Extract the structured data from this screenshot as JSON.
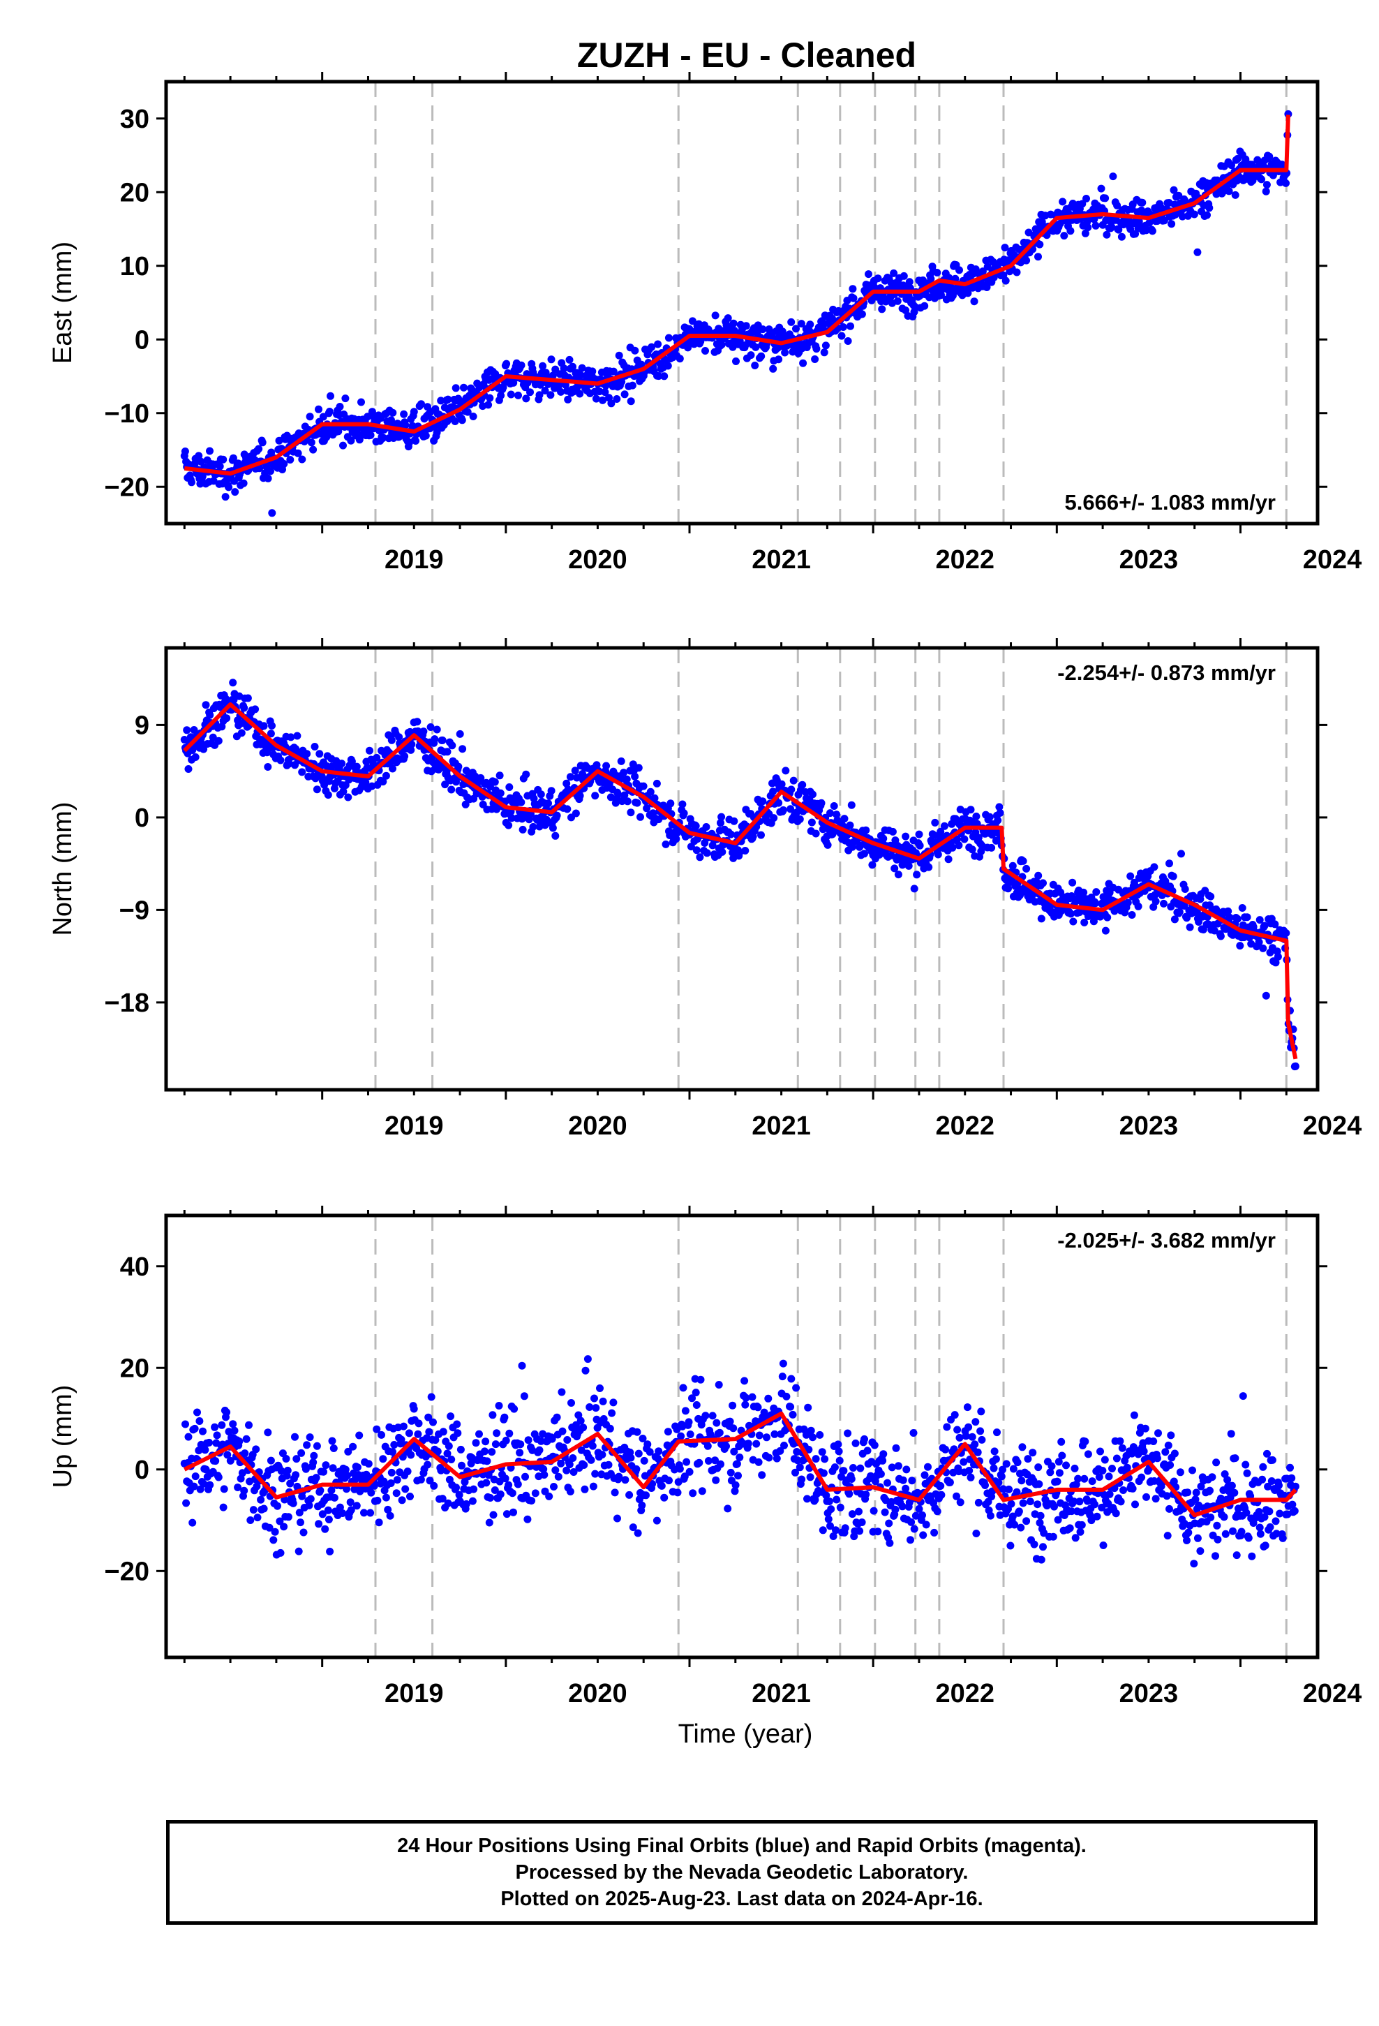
{
  "title": "ZUZH  - EU - Cleaned",
  "x_axis_label": "Time (year)",
  "footer": {
    "line1": "24 Hour Positions Using Final Orbits (blue) and Rapid Orbits (magenta).",
    "line2": "Processed by the Nevada Geodetic Laboratory.",
    "line3": "Plotted on 2025-Aug-23. Last data on 2024-Apr-16."
  },
  "colors": {
    "points": "#0000ff",
    "model": "#ff0000",
    "steps": "#bbbbbb",
    "frame": "#000000"
  },
  "chart_data": [
    {
      "type": "scatter",
      "panel": "east",
      "ylabel": "East (mm)",
      "rate_label": "5.666+/- 1.083 mm/yr",
      "rate_position": "bottom-right",
      "xlim": [
        2018.15,
        2024.42
      ],
      "ylim": [
        -25,
        35
      ],
      "yticks": [
        -20,
        -10,
        0,
        10,
        20,
        30
      ],
      "xticks": [
        2019,
        2020,
        2021,
        2022,
        2023,
        2024
      ],
      "step_epochs": [
        2019.29,
        2019.6,
        2020.94,
        2021.59,
        2021.82,
        2022.01,
        2022.23,
        2022.36,
        2022.71,
        2024.25
      ],
      "model_line": {
        "x": [
          2018.25,
          2018.5,
          2018.75,
          2019.0,
          2019.25,
          2019.5,
          2019.75,
          2020.0,
          2020.25,
          2020.5,
          2020.75,
          2021.0,
          2021.25,
          2021.5,
          2021.75,
          2022.0,
          2022.25,
          2022.36,
          2022.5,
          2022.75,
          2023.0,
          2023.25,
          2023.5,
          2023.75,
          2024.0,
          2024.25,
          2024.26
        ],
        "y": [
          -17.5,
          -18.2,
          -16.0,
          -11.5,
          -11.5,
          -12.5,
          -9.5,
          -5.0,
          -5.5,
          -6.0,
          -4.0,
          0.5,
          0.5,
          -0.5,
          1.0,
          6.5,
          6.5,
          8.0,
          7.5,
          10.0,
          16.5,
          17.0,
          16.5,
          18.5,
          23.0,
          23.0,
          30.5
        ]
      },
      "scatter_points": {
        "n": 1400,
        "color": "blue",
        "spread_mm": 1.8
      }
    },
    {
      "type": "scatter",
      "panel": "north",
      "ylabel": "North (mm)",
      "rate_label": "-2.254+/- 0.873 mm/yr",
      "rate_position": "top-right",
      "xlim": [
        2018.15,
        2024.42
      ],
      "ylim": [
        -26.5,
        16.5
      ],
      "yticks": [
        -18,
        -9,
        0,
        9
      ],
      "xticks": [
        2019,
        2020,
        2021,
        2022,
        2023,
        2024
      ],
      "step_epochs": [
        2019.29,
        2019.6,
        2020.94,
        2021.59,
        2021.82,
        2022.01,
        2022.23,
        2022.36,
        2022.71,
        2024.25
      ],
      "model_line": {
        "x": [
          2018.25,
          2018.5,
          2018.75,
          2019.0,
          2019.25,
          2019.5,
          2019.75,
          2020.0,
          2020.25,
          2020.5,
          2020.75,
          2021.0,
          2021.25,
          2021.5,
          2021.75,
          2022.0,
          2022.25,
          2022.5,
          2022.7,
          2022.71,
          2023.0,
          2023.25,
          2023.5,
          2023.75,
          2024.0,
          2024.25,
          2024.26,
          2024.3
        ],
        "y": [
          6.5,
          11.0,
          7.0,
          4.5,
          4.0,
          8.0,
          4.0,
          1.0,
          0.5,
          4.5,
          2.0,
          -1.5,
          -2.5,
          2.5,
          -0.5,
          -2.5,
          -4.0,
          -1.0,
          -1.0,
          -5.0,
          -8.5,
          -9.0,
          -6.5,
          -8.5,
          -11.0,
          -12.0,
          -20.0,
          -23.5
        ]
      },
      "scatter_points": {
        "n": 1400,
        "color": "blue",
        "spread_mm": 1.5
      }
    },
    {
      "type": "scatter",
      "panel": "up",
      "ylabel": "Up (mm)",
      "rate_label": "-2.025+/- 3.682 mm/yr",
      "rate_position": "top-right",
      "xlim": [
        2018.15,
        2024.42
      ],
      "ylim": [
        -37,
        50
      ],
      "yticks": [
        -20,
        0,
        20,
        40
      ],
      "xticks": [
        2019,
        2020,
        2021,
        2022,
        2023,
        2024
      ],
      "step_epochs": [
        2019.29,
        2019.6,
        2020.94,
        2021.59,
        2021.82,
        2022.01,
        2022.23,
        2022.36,
        2022.71,
        2024.25
      ],
      "model_line": {
        "x": [
          2018.25,
          2018.5,
          2018.75,
          2019.0,
          2019.25,
          2019.5,
          2019.75,
          2020.0,
          2020.25,
          2020.5,
          2020.75,
          2020.94,
          2021.25,
          2021.5,
          2021.75,
          2022.0,
          2022.25,
          2022.5,
          2022.71,
          2023.0,
          2023.25,
          2023.5,
          2023.75,
          2024.0,
          2024.25,
          2024.3
        ],
        "y": [
          0.0,
          4.5,
          -5.5,
          -3.0,
          -3.0,
          6.0,
          -1.5,
          1.0,
          1.5,
          7.0,
          -3.5,
          5.5,
          6.0,
          11.0,
          -4.0,
          -3.5,
          -6.0,
          5.0,
          -6.0,
          -4.0,
          -4.0,
          1.5,
          -9.0,
          -6.0,
          -6.0,
          -4.0
        ]
      },
      "scatter_points": {
        "n": 1400,
        "color": "blue",
        "spread_mm": 7.0
      }
    }
  ]
}
